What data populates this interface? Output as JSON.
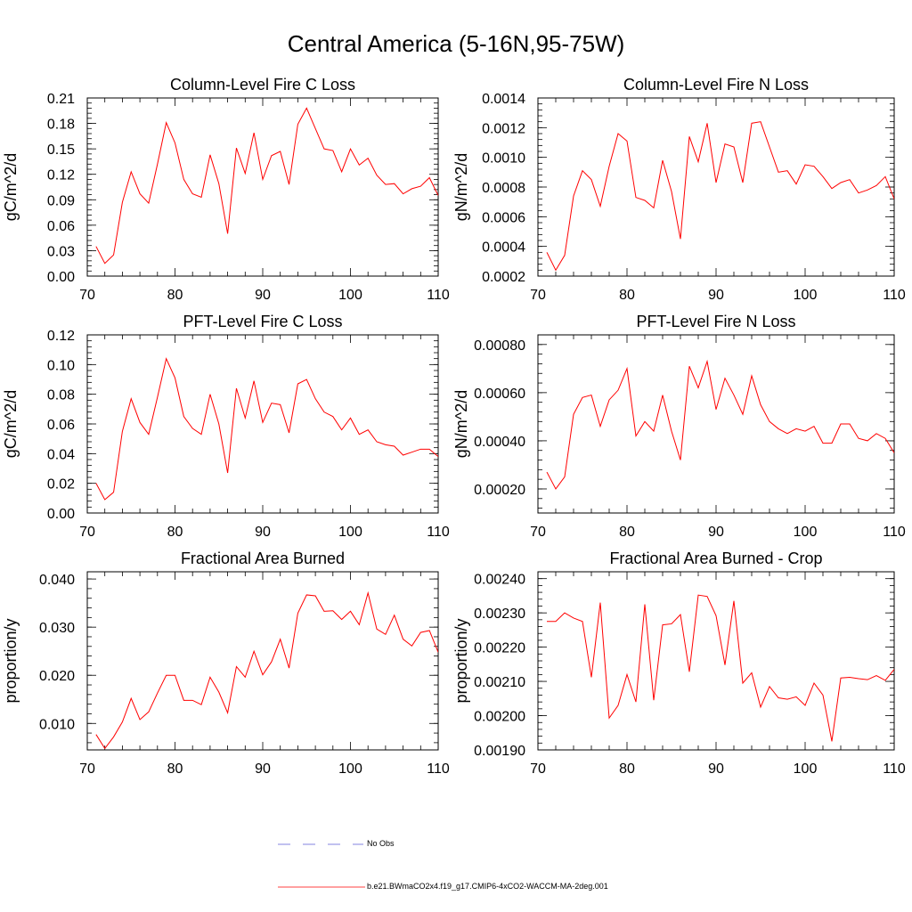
{
  "page_title": "Central America (5-16N,95-75W)",
  "colors": {
    "model_line": "#ff0000",
    "obs_line": "#5b5bd6",
    "axis": "#000000"
  },
  "legend": {
    "obs_label": "No Obs",
    "model_label": "b.e21.BWmaCO2x4.f19_g17.CMIP6-4xCO2-WACCM-MA-2deg.001"
  },
  "chart_data": [
    {
      "type": "line",
      "title": "Column-Level Fire C Loss",
      "ylabel": "gC/m^2/d",
      "xlim": [
        70,
        110
      ],
      "ylim": [
        0,
        0.21
      ],
      "xticks": [
        70,
        80,
        90,
        100,
        110
      ],
      "yticks": [
        0,
        0.03,
        0.06,
        0.09,
        0.12,
        0.15,
        0.18,
        0.21
      ],
      "ytick_labels": [
        "0.00",
        "0.03",
        "0.06",
        "0.09",
        "0.12",
        "0.15",
        "0.18",
        "0.21"
      ],
      "x": [
        71,
        72,
        73,
        74,
        75,
        76,
        77,
        78,
        79,
        80,
        81,
        82,
        83,
        84,
        85,
        86,
        87,
        88,
        89,
        90,
        91,
        92,
        93,
        94,
        95,
        96,
        97,
        98,
        99,
        100,
        101,
        102,
        103,
        104,
        105,
        106,
        107,
        108,
        109,
        110
      ],
      "series": [
        {
          "name": "b.e21.BWmaCO2x4.f19_g17.CMIP6-4xCO2-WACCM-MA-2deg.001",
          "values": [
            0.035,
            0.015,
            0.025,
            0.087,
            0.123,
            0.097,
            0.086,
            0.132,
            0.181,
            0.157,
            0.114,
            0.097,
            0.093,
            0.143,
            0.109,
            0.05,
            0.151,
            0.121,
            0.169,
            0.114,
            0.142,
            0.147,
            0.108,
            0.179,
            0.198,
            0.174,
            0.15,
            0.148,
            0.123,
            0.15,
            0.131,
            0.139,
            0.119,
            0.108,
            0.109,
            0.097,
            0.103,
            0.106,
            0.116,
            0.095
          ]
        }
      ]
    },
    {
      "type": "line",
      "title": "Column-Level Fire N Loss",
      "ylabel": "gN/m^2/d",
      "xlim": [
        70,
        110
      ],
      "ylim": [
        0.0002,
        0.0014
      ],
      "xticks": [
        70,
        80,
        90,
        100,
        110
      ],
      "yticks": [
        0.0002,
        0.0004,
        0.0006,
        0.0008,
        0.001,
        0.0012,
        0.0014
      ],
      "ytick_labels": [
        "0.0002",
        "0.0004",
        "0.0006",
        "0.0008",
        "0.0010",
        "0.0012",
        "0.0014"
      ],
      "x": [
        71,
        72,
        73,
        74,
        75,
        76,
        77,
        78,
        79,
        80,
        81,
        82,
        83,
        84,
        85,
        86,
        87,
        88,
        89,
        90,
        91,
        92,
        93,
        94,
        95,
        96,
        97,
        98,
        99,
        100,
        101,
        102,
        103,
        104,
        105,
        106,
        107,
        108,
        109,
        110
      ],
      "series": [
        {
          "name": "b.e21.BWmaCO2x4.f19_g17.CMIP6-4xCO2-WACCM-MA-2deg.001",
          "values": [
            0.00036,
            0.00024,
            0.00034,
            0.00074,
            0.00091,
            0.00085,
            0.00067,
            0.00094,
            0.00116,
            0.00111,
            0.00073,
            0.00071,
            0.00066,
            0.00098,
            0.00077,
            0.00045,
            0.00114,
            0.00097,
            0.00123,
            0.00083,
            0.00109,
            0.00107,
            0.00083,
            0.00123,
            0.00124,
            0.00107,
            0.0009,
            0.00091,
            0.00082,
            0.00095,
            0.00094,
            0.00087,
            0.00079,
            0.00083,
            0.00085,
            0.00076,
            0.00078,
            0.00081,
            0.00087,
            0.00072
          ]
        }
      ]
    },
    {
      "type": "line",
      "title": "PFT-Level Fire C Loss",
      "ylabel": "gC/m^2/d",
      "xlim": [
        70,
        110
      ],
      "ylim": [
        0,
        0.12
      ],
      "xticks": [
        70,
        80,
        90,
        100,
        110
      ],
      "yticks": [
        0,
        0.02,
        0.04,
        0.06,
        0.08,
        0.1,
        0.12
      ],
      "ytick_labels": [
        "0.00",
        "0.02",
        "0.04",
        "0.06",
        "0.08",
        "0.10",
        "0.12"
      ],
      "x": [
        71,
        72,
        73,
        74,
        75,
        76,
        77,
        78,
        79,
        80,
        81,
        82,
        83,
        84,
        85,
        86,
        87,
        88,
        89,
        90,
        91,
        92,
        93,
        94,
        95,
        96,
        97,
        98,
        99,
        100,
        101,
        102,
        103,
        104,
        105,
        106,
        107,
        108,
        109,
        110
      ],
      "series": [
        {
          "name": "b.e21.BWmaCO2x4.f19_g17.CMIP6-4xCO2-WACCM-MA-2deg.001",
          "values": [
            0.02,
            0.009,
            0.014,
            0.055,
            0.077,
            0.061,
            0.053,
            0.078,
            0.104,
            0.091,
            0.065,
            0.057,
            0.053,
            0.08,
            0.06,
            0.027,
            0.084,
            0.064,
            0.089,
            0.061,
            0.074,
            0.073,
            0.054,
            0.087,
            0.09,
            0.077,
            0.068,
            0.065,
            0.056,
            0.064,
            0.053,
            0.056,
            0.048,
            0.046,
            0.045,
            0.039,
            0.041,
            0.043,
            0.043,
            0.038
          ]
        }
      ]
    },
    {
      "type": "line",
      "title": "PFT-Level Fire N Loss",
      "ylabel": "gN/m^2/d",
      "xlim": [
        70,
        110
      ],
      "ylim": [
        0.0001,
        0.00084
      ],
      "xticks": [
        70,
        80,
        90,
        100,
        110
      ],
      "yticks": [
        0.0002,
        0.0004,
        0.0006,
        0.0008
      ],
      "ytick_labels": [
        "0.00020",
        "0.00040",
        "0.00060",
        "0.00080"
      ],
      "x": [
        71,
        72,
        73,
        74,
        75,
        76,
        77,
        78,
        79,
        80,
        81,
        82,
        83,
        84,
        85,
        86,
        87,
        88,
        89,
        90,
        91,
        92,
        93,
        94,
        95,
        96,
        97,
        98,
        99,
        100,
        101,
        102,
        103,
        104,
        105,
        106,
        107,
        108,
        109,
        110
      ],
      "series": [
        {
          "name": "b.e21.BWmaCO2x4.f19_g17.CMIP6-4xCO2-WACCM-MA-2deg.001",
          "values": [
            0.00027,
            0.0002,
            0.00025,
            0.00051,
            0.00058,
            0.00059,
            0.00046,
            0.00057,
            0.00061,
            0.0007,
            0.00042,
            0.00048,
            0.00044,
            0.00059,
            0.00044,
            0.00032,
            0.00071,
            0.00062,
            0.00073,
            0.00053,
            0.00066,
            0.00059,
            0.00051,
            0.00067,
            0.00055,
            0.00048,
            0.00045,
            0.00043,
            0.00045,
            0.00044,
            0.00046,
            0.00039,
            0.00039,
            0.00047,
            0.00047,
            0.00041,
            0.0004,
            0.00043,
            0.00041,
            0.00035
          ]
        }
      ]
    },
    {
      "type": "line",
      "title": "Fractional Area Burned",
      "ylabel": "proportion/y",
      "xlim": [
        70,
        110
      ],
      "ylim": [
        0.0045,
        0.0415
      ],
      "xticks": [
        70,
        80,
        90,
        100,
        110
      ],
      "yticks": [
        0.01,
        0.02,
        0.03,
        0.04
      ],
      "ytick_labels": [
        "0.010",
        "0.020",
        "0.030",
        "0.040"
      ],
      "x": [
        71,
        72,
        73,
        74,
        75,
        76,
        77,
        78,
        79,
        80,
        81,
        82,
        83,
        84,
        85,
        86,
        87,
        88,
        89,
        90,
        91,
        92,
        93,
        94,
        95,
        96,
        97,
        98,
        99,
        100,
        101,
        102,
        103,
        104,
        105,
        106,
        107,
        108,
        109,
        110
      ],
      "series": [
        {
          "name": "b.e21.BWmaCO2x4.f19_g17.CMIP6-4xCO2-WACCM-MA-2deg.001",
          "values": [
            0.0077,
            0.0048,
            0.0072,
            0.0103,
            0.0152,
            0.0108,
            0.0124,
            0.0163,
            0.02,
            0.02,
            0.0148,
            0.0148,
            0.0139,
            0.0196,
            0.0165,
            0.0122,
            0.0218,
            0.0196,
            0.025,
            0.0201,
            0.0228,
            0.0275,
            0.0215,
            0.0329,
            0.0367,
            0.0365,
            0.0333,
            0.0334,
            0.0316,
            0.0333,
            0.0305,
            0.0371,
            0.0296,
            0.0285,
            0.0325,
            0.0275,
            0.0261,
            0.0289,
            0.0293,
            0.0248
          ]
        }
      ]
    },
    {
      "type": "line",
      "title": "Fractional Area Burned - Crop",
      "ylabel": "proportion/y",
      "xlim": [
        70,
        110
      ],
      "ylim": [
        0.0019,
        0.00242
      ],
      "xticks": [
        70,
        80,
        90,
        100,
        110
      ],
      "yticks": [
        0.0019,
        0.002,
        0.0021,
        0.0022,
        0.0023,
        0.0024
      ],
      "ytick_labels": [
        "0.00190",
        "0.00200",
        "0.00210",
        "0.00220",
        "0.00230",
        "0.00240"
      ],
      "x": [
        71,
        72,
        73,
        74,
        75,
        76,
        77,
        78,
        79,
        80,
        81,
        82,
        83,
        84,
        85,
        86,
        87,
        88,
        89,
        90,
        91,
        92,
        93,
        94,
        95,
        96,
        97,
        98,
        99,
        100,
        101,
        102,
        103,
        104,
        105,
        106,
        107,
        108,
        109,
        110
      ],
      "series": [
        {
          "name": "b.e21.BWmaCO2x4.f19_g17.CMIP6-4xCO2-WACCM-MA-2deg.001",
          "values": [
            0.002275,
            0.002275,
            0.0023,
            0.002285,
            0.002275,
            0.002112,
            0.00233,
            0.001993,
            0.00203,
            0.00212,
            0.00204,
            0.002325,
            0.002045,
            0.002265,
            0.002268,
            0.002295,
            0.002128,
            0.002352,
            0.002348,
            0.002292,
            0.002148,
            0.002335,
            0.002095,
            0.002125,
            0.002025,
            0.002085,
            0.002052,
            0.002048,
            0.002055,
            0.00203,
            0.002095,
            0.00206,
            0.001925,
            0.00211,
            0.002112,
            0.002108,
            0.002105,
            0.002117,
            0.002103,
            0.002135
          ]
        }
      ]
    }
  ]
}
